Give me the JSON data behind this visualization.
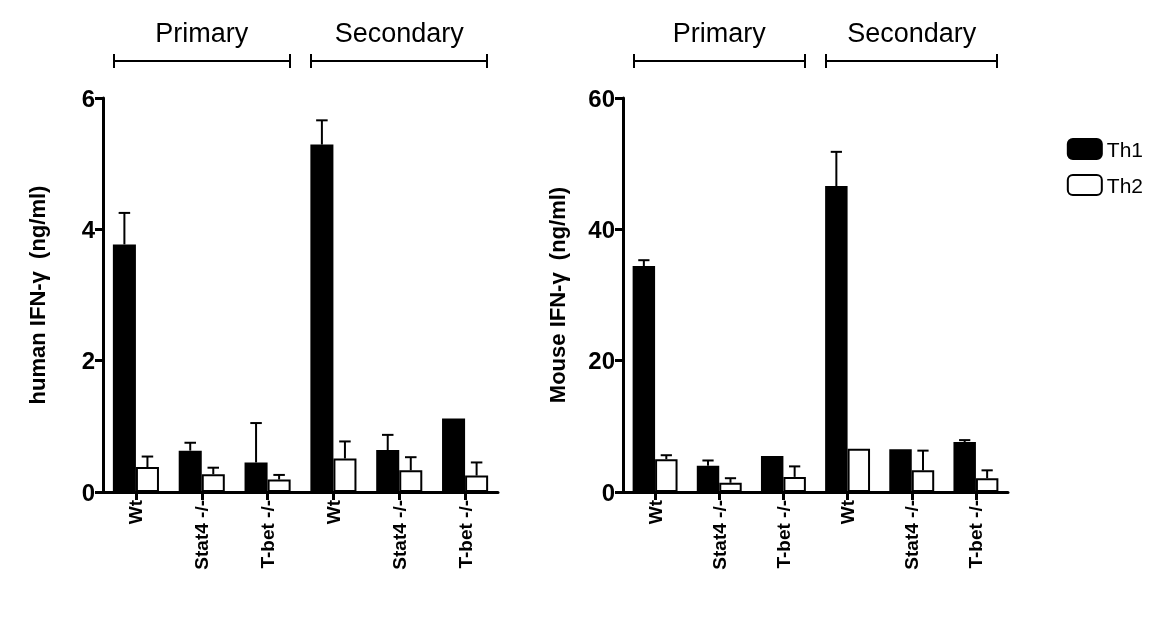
{
  "chart_data": [
    {
      "type": "bar",
      "ylabel": "human IFN-γ  (ng/ml)",
      "categories": [
        "Wt",
        "Stat4 -/-",
        "T-bet -/-",
        "Wt",
        "Stat4 -/-",
        "T-bet -/-"
      ],
      "annotations": [
        "Primary",
        "Secondary"
      ],
      "ylim": [
        0,
        6
      ],
      "yticks": [
        0,
        2,
        4,
        6
      ],
      "grid": false,
      "legend": false,
      "series": [
        {
          "color": "#000000",
          "values": [
            3.77,
            0.63,
            0.45,
            5.29,
            0.64,
            1.12
          ],
          "errors": [
            0.48,
            0.12,
            0.6,
            0.37,
            0.23,
            null
          ]
        },
        {
          "color": "#ffffff",
          "values": [
            0.38,
            0.27,
            0.19,
            0.51,
            0.33,
            0.25
          ],
          "errors": [
            0.16,
            0.1,
            0.07,
            0.26,
            0.2,
            0.2
          ]
        }
      ]
    },
    {
      "type": "bar",
      "ylabel": "Mouse IFN-γ  (ng/ml)",
      "categories": [
        "Wt",
        "Stat4 -/-",
        "T-bet -/-",
        "Wt",
        "Stat4 -/-",
        "T-bet -/-"
      ],
      "annotations": [
        "Primary",
        "Secondary"
      ],
      "ylim": [
        0,
        60
      ],
      "yticks": [
        0,
        20,
        40,
        60
      ],
      "grid": false,
      "legend": "top right",
      "series": [
        {
          "name": "Th1",
          "color": "#000000",
          "values": [
            34.4,
            4.0,
            5.5,
            46.6,
            6.5,
            7.6
          ],
          "errors": [
            0.9,
            0.8,
            null,
            5.2,
            null,
            0.3
          ]
        },
        {
          "name": "Th2",
          "color": "#ffffff",
          "values": [
            5.0,
            1.4,
            2.3,
            6.6,
            3.3,
            2.1
          ],
          "errors": [
            0.6,
            0.7,
            1.6,
            null,
            3.0,
            1.2
          ]
        }
      ]
    }
  ]
}
